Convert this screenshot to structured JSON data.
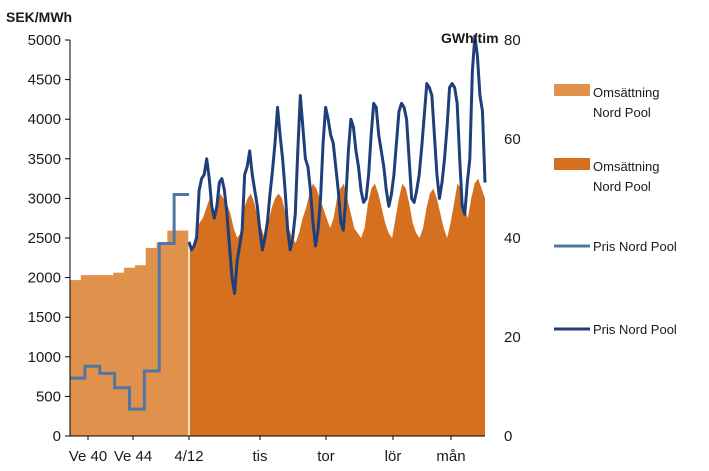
{
  "chart_data": {
    "type": "line",
    "left_axis": {
      "title": "SEK/MWh",
      "min": 0,
      "max": 5000,
      "ticks": [
        "0",
        "500",
        "1000",
        "1500",
        "2000",
        "2500",
        "3000",
        "3500",
        "4000",
        "4500",
        "5000"
      ]
    },
    "right_axis": {
      "title": "GWh/tim",
      "min": 0,
      "max": 80,
      "ticks": [
        "0",
        "20",
        "40",
        "60",
        "80"
      ]
    },
    "x_labels": [
      "Ve 40",
      "Ve 44",
      "4/12",
      "tis",
      "tor",
      "lör",
      "mån"
    ],
    "legend": [
      "Omsättning Nord Pool",
      "Omsättning Nord Pool",
      "Pris Nord Pool",
      "Pris Nord Pool"
    ],
    "colors": {
      "weekly_volume": "#E0914B",
      "hourly_volume": "#D4701F",
      "weekly_price": "#4F77A4",
      "hourly_price": "#1F3F7A",
      "axis": "#000000"
    },
    "weekly_volume_gwh": [
      31.5,
      32.5,
      32.5,
      32.5,
      33,
      34,
      34.5,
      38,
      39,
      41.5,
      41.5
    ],
    "weekly_price_sek": [
      730,
      880,
      790,
      610,
      340,
      820,
      2430,
      3050
    ],
    "hourly_volume_gwh": [
      40,
      38,
      41,
      43,
      44,
      46,
      48,
      45,
      46,
      49,
      48,
      47,
      45,
      42,
      40,
      41,
      46,
      48,
      49,
      47,
      44,
      42,
      40,
      43,
      46,
      48,
      49,
      48,
      45,
      42,
      40,
      39,
      41,
      44,
      46,
      49,
      51,
      50,
      48,
      46,
      44,
      42,
      44,
      48,
      50,
      51,
      48,
      45,
      42,
      41,
      40,
      42,
      47,
      50,
      51,
      49,
      46,
      43,
      41,
      40,
      44,
      48,
      51,
      50,
      47,
      43,
      41,
      40,
      42,
      46,
      49,
      50,
      48,
      45,
      42,
      40,
      43,
      47,
      51,
      50,
      46,
      44,
      48,
      51,
      52,
      50,
      48
    ],
    "hourly_price_sek": [
      2450,
      2350,
      2400,
      2500,
      3100,
      3250,
      3300,
      3500,
      3250,
      2900,
      2750,
      2900,
      3200,
      3250,
      3100,
      2800,
      2400,
      2000,
      1800,
      2200,
      2400,
      2600,
      3300,
      3400,
      3600,
      3300,
      3100,
      2900,
      2600,
      2350,
      2500,
      2700,
      3050,
      3350,
      3700,
      4150,
      3800,
      3500,
      3100,
      2600,
      2350,
      2500,
      2800,
      3600,
      4300,
      3900,
      3500,
      3400,
      3100,
      2700,
      2400,
      2600,
      3000,
      3700,
      4150,
      4000,
      3800,
      3700,
      3400,
      3100,
      2700,
      2600,
      3000,
      3600,
      4000,
      3900,
      3600,
      3400,
      3100,
      2950,
      3000,
      3300,
      3800,
      4200,
      4150,
      3800,
      3600,
      3400,
      3100,
      2900,
      3050,
      3300,
      3700,
      4100,
      4200,
      4150,
      4000,
      3500,
      3000,
      2950,
      3100,
      3300,
      3650,
      4050,
      4450,
      4400,
      4300,
      3800,
      3300,
      3000,
      3200,
      3500,
      3900,
      4400,
      4450,
      4400,
      4200,
      3500,
      2900,
      2800,
      3200,
      3500,
      4600,
      5050,
      4800,
      4300,
      4100,
      3200
    ]
  }
}
